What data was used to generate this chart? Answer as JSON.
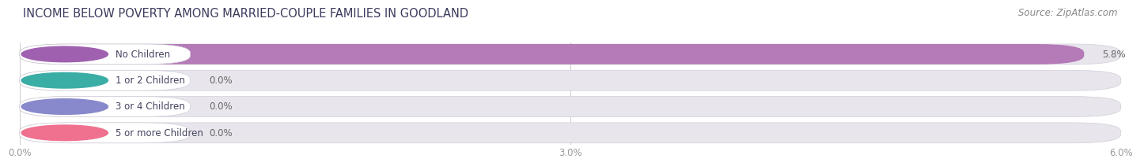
{
  "title": "INCOME BELOW POVERTY AMONG MARRIED-COUPLE FAMILIES IN GOODLAND",
  "source": "Source: ZipAtlas.com",
  "categories": [
    "No Children",
    "1 or 2 Children",
    "3 or 4 Children",
    "5 or more Children"
  ],
  "values": [
    5.8,
    0.0,
    0.0,
    0.0
  ],
  "bar_colors": [
    "#b57ab8",
    "#5dbdb5",
    "#a8aade",
    "#f4a0b5"
  ],
  "label_circle_colors": [
    "#a060b0",
    "#3aada5",
    "#8888cc",
    "#f07090"
  ],
  "xlim_max": 6.0,
  "xticks": [
    0.0,
    3.0,
    6.0
  ],
  "xtick_labels": [
    "0.0%",
    "3.0%",
    "6.0%"
  ],
  "background_color": "#ffffff",
  "bar_bg_color": "#e8e6ec",
  "title_color": "#3a3a5c",
  "source_color": "#888888",
  "label_color": "#444460",
  "value_color": "#666666",
  "title_fontsize": 10.5,
  "source_fontsize": 8.5,
  "label_fontsize": 8.5,
  "value_fontsize": 8.5,
  "tick_fontsize": 8.5
}
